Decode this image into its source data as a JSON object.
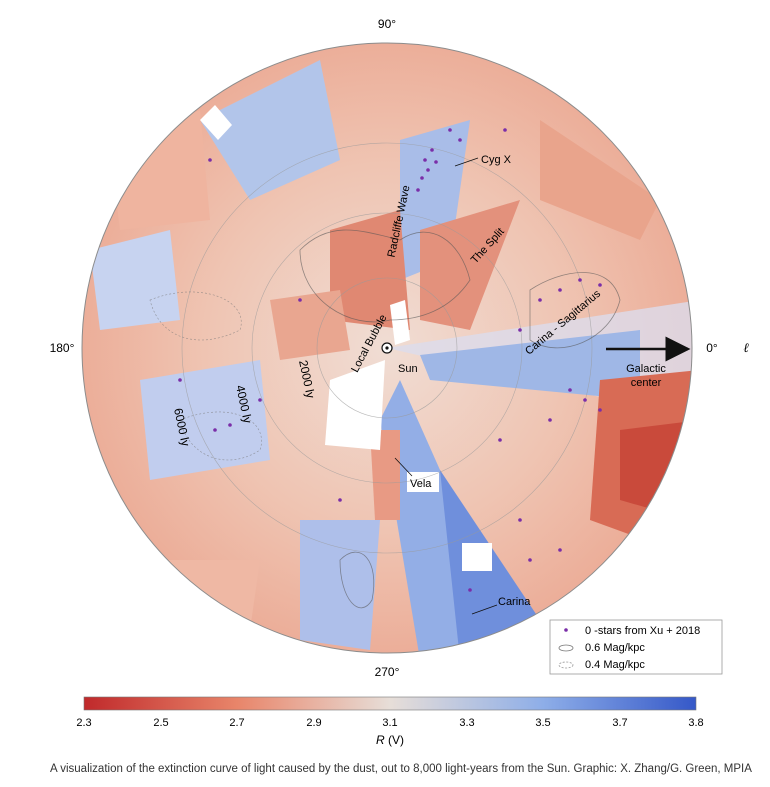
{
  "longitude_labels": {
    "top": "90°",
    "left": "180°",
    "right": "0°",
    "bottom": "270°",
    "axis_symbol": "ℓ"
  },
  "distance_labels": [
    "2000 ly",
    "4000 ly",
    "6000 ly"
  ],
  "features": {
    "sun": "Sun",
    "local_bubble": "Local Bubble",
    "radcliffe_wave": "Radcliffe Wave",
    "the_split": "The Split",
    "cyg_x": "Cyg X",
    "carina_sagittarius": "Carina - Sagittarius",
    "carina_arm": "Carina",
    "vela": "Vela",
    "carina": "Carina",
    "galactic_center_1": "Galactic",
    "galactic_center_2": "center"
  },
  "legend": {
    "stars": "0 -stars from Xu + 2018",
    "contour_strong": "0.6 Mag/kpc",
    "contour_weak": "0.4 Mag/kpc"
  },
  "colorbar": {
    "ticks": [
      "2.3",
      "2.5",
      "2.7",
      "2.9",
      "3.1",
      "3.3",
      "3.5",
      "3.7",
      "3.8"
    ],
    "label_main": "R",
    "label_unit": " (V)",
    "colors": [
      "#c0292b",
      "#e8856a",
      "#e7ded8",
      "#8eaee8",
      "#3558c8"
    ]
  },
  "caption": "A visualization of the extinction curve of light caused by the dust, out to 8,000 light-years from the Sun. Graphic: X. Zhang/G. Green, MPIA"
}
